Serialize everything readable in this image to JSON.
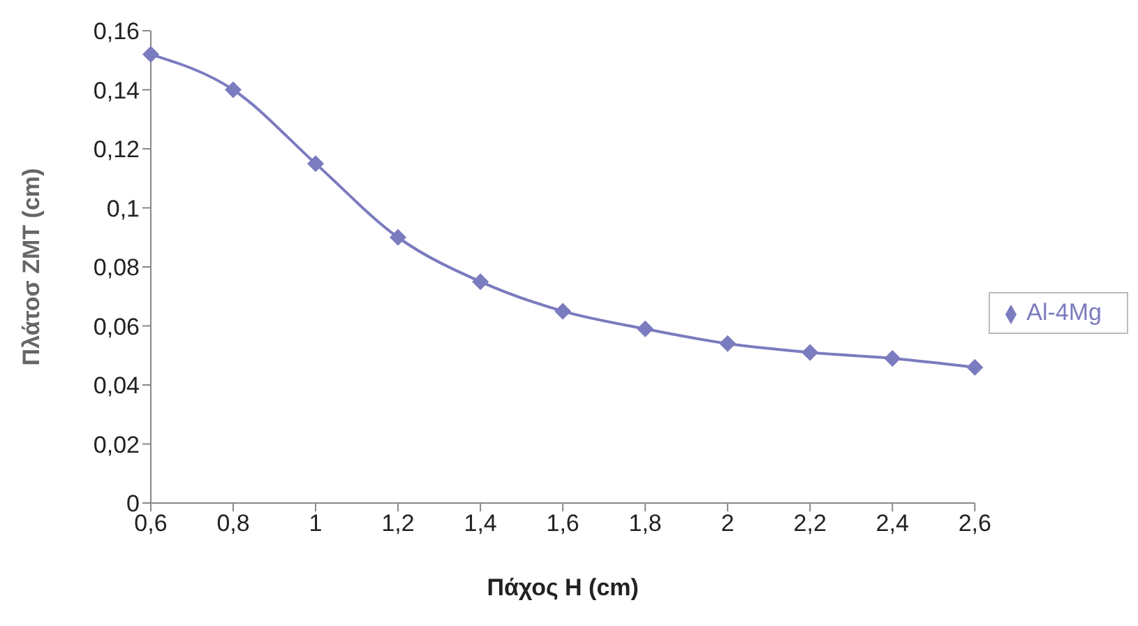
{
  "chart_data": {
    "type": "line",
    "xlabel": "Πάχος H (cm)",
    "ylabel": "Πλάτοσ ZMT (cm)",
    "categories": [
      "0,6",
      "0,8",
      "1",
      "1,2",
      "1,4",
      "1,6",
      "1,8",
      "2",
      "2,2",
      "2,4",
      "2,6"
    ],
    "series": [
      {
        "name": "Al-4Mg",
        "color": "#7b7bbf",
        "values": [
          0.152,
          0.14,
          0.115,
          0.09,
          0.075,
          0.065,
          0.059,
          0.054,
          0.051,
          0.049,
          0.046
        ]
      }
    ],
    "ylim": [
      0,
      0.16
    ],
    "yticks": [
      0,
      {
        "value": 0.02,
        "label": "0,02"
      },
      {
        "value": 0.04,
        "label": "0,04"
      },
      {
        "value": 0.06,
        "label": "0,06"
      },
      {
        "value": 0.08,
        "label": "0,08"
      },
      {
        "value": 0.1,
        "label": "0,1"
      },
      {
        "value": 0.12,
        "label": "0,12"
      },
      {
        "value": 0.14,
        "label": "0,14"
      },
      {
        "value": 0.16,
        "label": "0,16"
      }
    ],
    "grid": false,
    "legend": "right",
    "marker": "diamond",
    "line_style": "solid"
  }
}
